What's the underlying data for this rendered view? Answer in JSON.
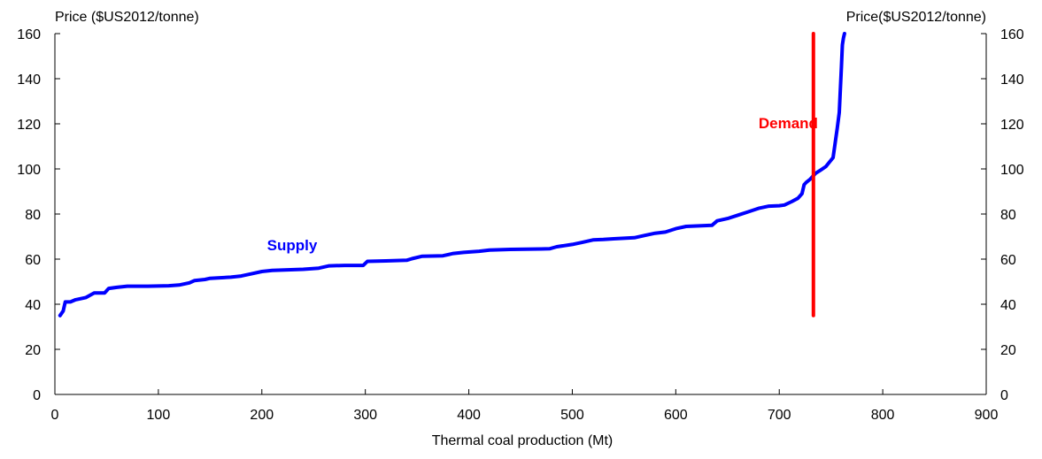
{
  "chart_data": {
    "type": "line",
    "xlabel": "Thermal coal production (Mt)",
    "ylabel_left": "Price ($US2012/tonne)",
    "ylabel_right": "Price($US2012/tonne)",
    "xlim": [
      0,
      900
    ],
    "ylim": [
      0,
      160
    ],
    "x_ticks": [
      0,
      100,
      200,
      300,
      400,
      500,
      600,
      700,
      800,
      900
    ],
    "y_ticks": [
      0,
      20,
      40,
      60,
      80,
      100,
      120,
      140,
      160
    ],
    "grid": false,
    "series": [
      {
        "name": "Supply",
        "color": "#0000ff",
        "x": [
          5,
          8,
          10,
          15,
          20,
          30,
          38,
          48,
          52,
          60,
          70,
          90,
          110,
          120,
          130,
          135,
          145,
          150,
          170,
          180,
          190,
          200,
          210,
          240,
          255,
          265,
          280,
          298,
          302,
          320,
          340,
          345,
          355,
          375,
          385,
          395,
          410,
          420,
          440,
          470,
          478,
          485,
          500,
          510,
          520,
          530,
          540,
          560,
          570,
          580,
          590,
          600,
          610,
          620,
          635,
          640,
          650,
          660,
          670,
          680,
          690,
          700,
          705,
          712,
          718,
          722,
          724,
          726,
          730,
          735,
          740,
          745,
          752,
          756,
          758,
          760,
          761,
          762,
          763
        ],
        "values": [
          35,
          37,
          41,
          41,
          42,
          43,
          45,
          45,
          47,
          47.5,
          48,
          48,
          48.2,
          48.5,
          49.5,
          50.5,
          51,
          51.5,
          52,
          52.5,
          53.5,
          54.5,
          55,
          55.5,
          56,
          57,
          57.2,
          57.2,
          59,
          59.2,
          59.5,
          60.2,
          61.3,
          61.5,
          62.5,
          63,
          63.5,
          64,
          64.3,
          64.5,
          64.6,
          65.5,
          66.5,
          67.5,
          68.5,
          68.7,
          69,
          69.5,
          70.5,
          71.5,
          72,
          73.5,
          74.5,
          74.7,
          75,
          77,
          78,
          79.5,
          81,
          82.5,
          83.5,
          83.7,
          84,
          85.5,
          87,
          89,
          93,
          94,
          95.5,
          98,
          99.5,
          101,
          105,
          118,
          125,
          145,
          155,
          158,
          160
        ]
      },
      {
        "name": "Demand",
        "color": "#ff0000",
        "x": [
          733,
          733
        ],
        "values": [
          35,
          160
        ]
      }
    ],
    "annotations": [
      {
        "text": "Supply",
        "x": 205,
        "y": 64,
        "color": "#0000ff"
      },
      {
        "text": "Demand",
        "x": 680,
        "y": 118,
        "color": "#ff0000"
      }
    ]
  }
}
